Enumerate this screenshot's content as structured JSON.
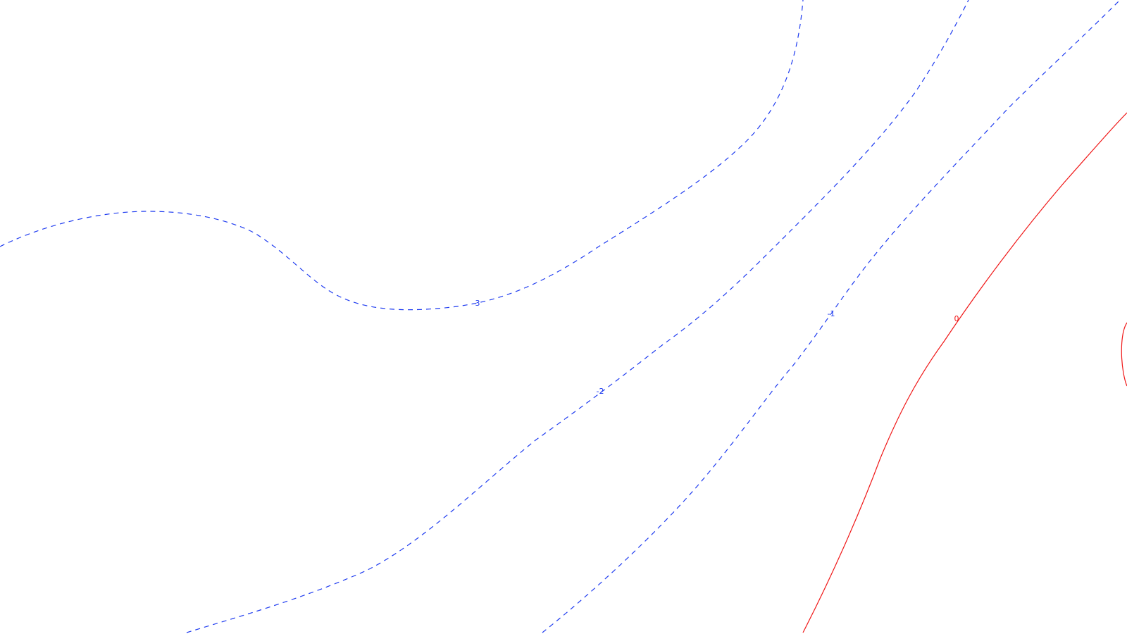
{
  "contour_map": {
    "colors": {
      "negative": "#1f3cf0",
      "zero": "#f01818",
      "background": "#ffffff"
    },
    "levels": [
      {
        "id": "level-minus-3",
        "label": "-3",
        "style": "dashed",
        "color_key": "negative"
      },
      {
        "id": "level-minus-2",
        "label": "-2",
        "style": "dashed",
        "color_key": "negative"
      },
      {
        "id": "level-minus-1",
        "label": "-1",
        "style": "dashed",
        "color_key": "negative"
      },
      {
        "id": "level-zero",
        "label": "0",
        "style": "solid",
        "color_key": "zero"
      }
    ]
  }
}
